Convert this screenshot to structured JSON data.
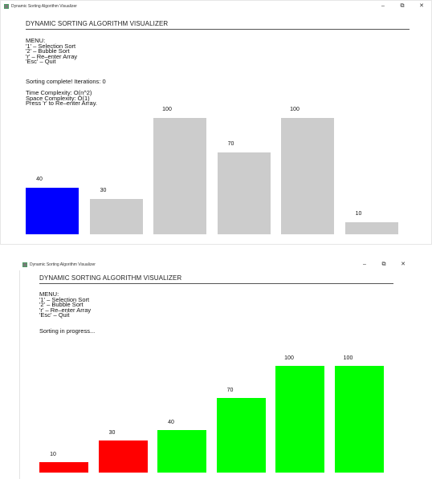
{
  "window_title": "Dynamic Sorting Algorithm Visualizer",
  "window_controls": {
    "minimize": "–",
    "maximize": "⧉",
    "close": "✕"
  },
  "heading": "DYNAMIC SORTING ALGORITHM VISUALIZER",
  "menu": {
    "title": "MENU:",
    "items": [
      "'1' – Selection Sort",
      "'2' – Bubble Sort",
      "'r' – Re–enter Array",
      "'Esc' – Quit"
    ]
  },
  "screens": [
    {
      "status": "Sorting complete! Iterations: 0",
      "complexity": [
        "Time Complexity: O(n^2)",
        "Space Complexity: O(1)",
        "Press 'r' to Re–enter Array."
      ],
      "bars": [
        {
          "value": 40,
          "color": "#0000ff"
        },
        {
          "value": 30,
          "color": "#cccccc"
        },
        {
          "value": 100,
          "color": "#cccccc"
        },
        {
          "value": 70,
          "color": "#cccccc"
        },
        {
          "value": 100,
          "color": "#cccccc"
        },
        {
          "value": 10,
          "color": "#cccccc"
        }
      ]
    },
    {
      "status": "Sorting in progress...",
      "bars": [
        {
          "value": 10,
          "color": "#ff0000"
        },
        {
          "value": 30,
          "color": "#ff0000"
        },
        {
          "value": 40,
          "color": "#00ff00"
        },
        {
          "value": 70,
          "color": "#00ff00"
        },
        {
          "value": 100,
          "color": "#00ff00"
        },
        {
          "value": 100,
          "color": "#00ff00"
        }
      ]
    }
  ]
}
